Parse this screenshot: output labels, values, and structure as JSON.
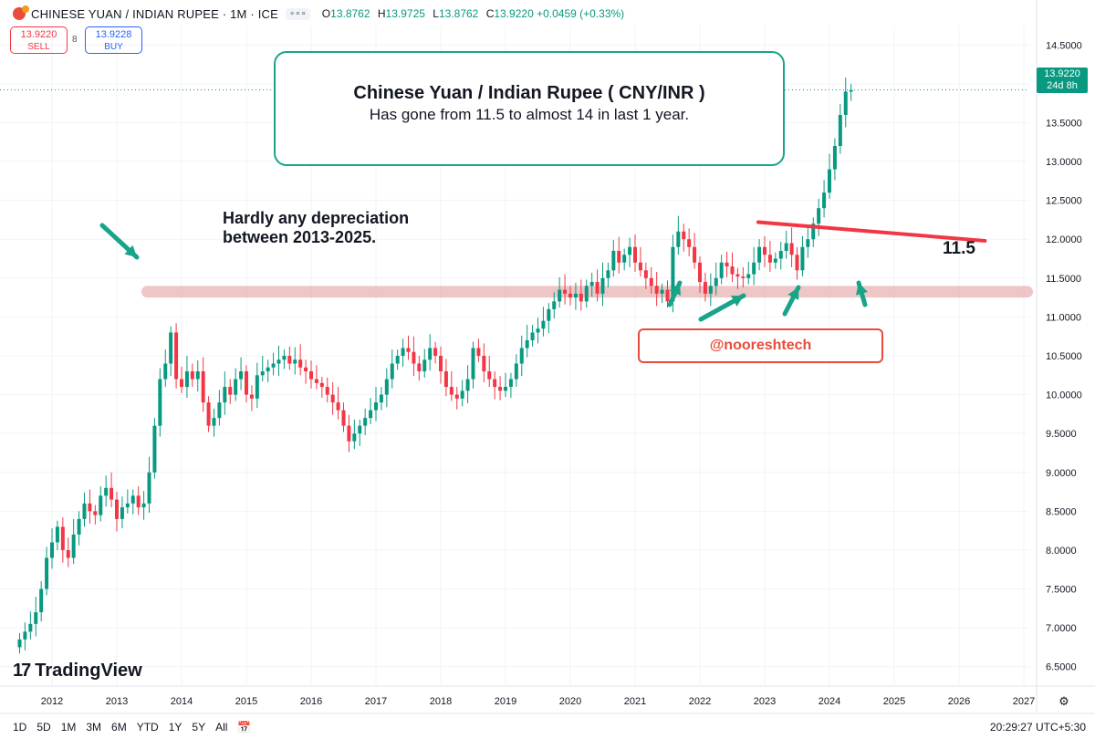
{
  "header": {
    "symbol": "CHINESE YUAN / INDIAN RUPEE · 1M · ICE",
    "more": "∘∘∘",
    "open_label": "O",
    "open": "13.8762",
    "high_label": "H",
    "high": "13.9725",
    "low_label": "L",
    "low": "13.8762",
    "close_label": "C",
    "close": "13.9220",
    "change": "+0.0459 (+0.33%)"
  },
  "trade": {
    "sell_price": "13.9220",
    "sell_label": "SELL",
    "spread": "8",
    "buy_price": "13.9228",
    "buy_label": "BUY"
  },
  "annotations": {
    "box_title": "Chinese Yuan / Indian Rupee ( CNY/INR )",
    "box_subtitle": "Has gone from 11.5 to almost 14 in last 1 year.",
    "hardly_line1": "Hardly any depreciation",
    "hardly_line2": "between 2013-2025.",
    "level_label": "11.5",
    "handle": "@nooreshtech"
  },
  "axis": {
    "current_price": "13.9220",
    "countdown": "24d 8h"
  },
  "branding": {
    "tv_mark": "17",
    "tv_name": "TradingView"
  },
  "timeframes": [
    "1D",
    "5D",
    "1M",
    "3M",
    "6M",
    "YTD",
    "1Y",
    "5Y",
    "All"
  ],
  "clock": "20:29:27 UTC+5:30",
  "colors": {
    "up": "#089981",
    "down": "#f23645",
    "annotation_green": "#17a589",
    "support_band": "#e8b3b3"
  },
  "chart_data": {
    "type": "candlestick",
    "interval": "1M",
    "ylim": [
      6.25,
      14.75
    ],
    "y_ticks": [
      6.5,
      7.0,
      7.5,
      8.0,
      8.5,
      9.0,
      9.5,
      10.0,
      10.5,
      11.0,
      11.5,
      12.0,
      12.5,
      13.0,
      13.5,
      14.0,
      14.5
    ],
    "x_ticks": [
      "2012",
      "2013",
      "2014",
      "2015",
      "2016",
      "2017",
      "2018",
      "2019",
      "2020",
      "2021",
      "2022",
      "2023",
      "2024",
      "2025",
      "2026",
      "2027"
    ],
    "x_start_year": 2011.5,
    "series_close": [
      6.85,
      6.95,
      7.05,
      7.2,
      7.5,
      7.9,
      8.1,
      8.3,
      8.0,
      7.9,
      8.2,
      8.4,
      8.6,
      8.5,
      8.45,
      8.7,
      8.8,
      8.65,
      8.4,
      8.55,
      8.6,
      8.7,
      8.55,
      8.6,
      9.0,
      9.6,
      10.2,
      10.4,
      10.8,
      10.2,
      10.1,
      10.3,
      10.2,
      10.3,
      9.9,
      9.6,
      9.7,
      9.9,
      10.1,
      10.0,
      10.2,
      10.3,
      10.0,
      9.95,
      10.25,
      10.3,
      10.35,
      10.4,
      10.45,
      10.5,
      10.4,
      10.45,
      10.35,
      10.3,
      10.2,
      10.15,
      10.1,
      10.0,
      9.9,
      9.8,
      9.6,
      9.4,
      9.5,
      9.6,
      9.7,
      9.8,
      9.9,
      10.0,
      10.2,
      10.4,
      10.5,
      10.6,
      10.55,
      10.4,
      10.3,
      10.45,
      10.6,
      10.5,
      10.3,
      10.1,
      10.0,
      9.95,
      10.05,
      10.2,
      10.6,
      10.5,
      10.3,
      10.2,
      10.1,
      10.05,
      10.1,
      10.2,
      10.4,
      10.6,
      10.7,
      10.8,
      10.85,
      10.95,
      11.1,
      11.2,
      11.35,
      11.3,
      11.25,
      11.3,
      11.2,
      11.4,
      11.45,
      11.3,
      11.5,
      11.6,
      11.85,
      11.7,
      11.8,
      11.9,
      11.7,
      11.6,
      11.5,
      11.4,
      11.3,
      11.35,
      11.2,
      11.9,
      12.1,
      12.0,
      11.9,
      11.7,
      11.45,
      11.3,
      11.4,
      11.5,
      11.7,
      11.65,
      11.55,
      11.52,
      11.5,
      11.55,
      11.7,
      11.9,
      11.8,
      11.7,
      11.75,
      11.85,
      11.95,
      11.8,
      11.6,
      11.9,
      12.0,
      12.2,
      12.4,
      12.6,
      12.9,
      13.2,
      13.6,
      13.9,
      13.92
    ],
    "support_band": [
      11.25,
      11.4
    ],
    "resistance_line": {
      "from": [
        2022.9,
        12.22
      ],
      "to": [
        2026.4,
        11.98
      ]
    },
    "last_value": 13.922
  }
}
